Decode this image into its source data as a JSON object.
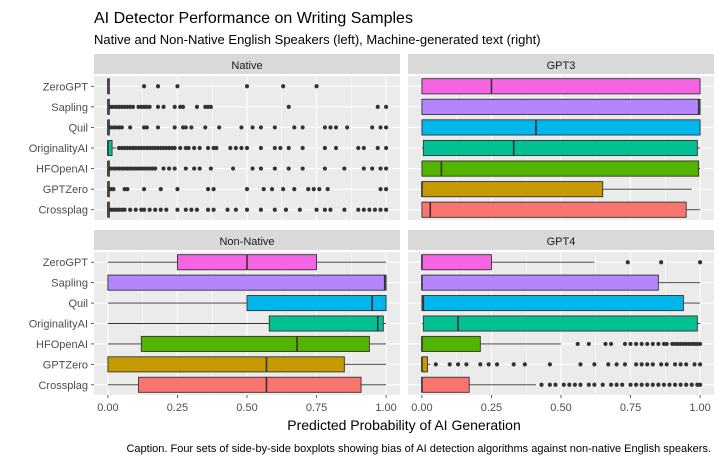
{
  "title": "AI Detector Performance on Writing Samples",
  "subtitle": "Native and Non-Native English Speakers (left), Machine-generated text (right)",
  "caption": "Caption. Four sets of side-by-side boxplots showing bias of AI detection algorithms against non-native English speakers.",
  "colors": {
    "panel_bg": "#ebebeb",
    "strip_bg": "#d9d9d9",
    "grid": "#ffffff",
    "ZeroGPT": "#f564e3",
    "Sapling": "#b385ff",
    "Quil": "#00b6eb",
    "OriginalityAI": "#00c094",
    "HFOpenAI": "#53b400",
    "GPTZero": "#c49a00",
    "Crossplag": "#f8766d"
  },
  "chart_data": {
    "type": "boxplot",
    "xlabel": "Predicted Probability of AI Generation",
    "xlim": [
      0,
      1
    ],
    "xticks": [
      "0.00",
      "0.25",
      "0.50",
      "0.75",
      "1.00"
    ],
    "xtick_values": [
      0,
      0.25,
      0.5,
      0.75,
      1
    ],
    "categories": [
      "ZeroGPT",
      "Sapling",
      "Quil",
      "OriginalityAI",
      "HFOpenAI",
      "GPTZero",
      "Crossplag"
    ],
    "grid": true,
    "panels": [
      {
        "name": "Native",
        "boxes": [
          {
            "category": "ZeroGPT",
            "q1": 0.0,
            "median": 0.0,
            "q3": 0.0,
            "whisker_low": 0.0,
            "whisker_high": 0.0,
            "outliers": [
              0.13,
              0.18,
              0.25,
              0.5,
              0.63,
              0.75
            ]
          },
          {
            "category": "Sapling",
            "q1": 0.0,
            "median": 0.0,
            "q3": 0.0,
            "whisker_low": 0.0,
            "whisker_high": 0.0,
            "outliers": [
              0.01,
              0.02,
              0.03,
              0.04,
              0.05,
              0.06,
              0.07,
              0.08,
              0.09,
              0.11,
              0.12,
              0.13,
              0.14,
              0.15,
              0.18,
              0.2,
              0.24,
              0.26,
              0.27,
              0.32,
              0.35,
              0.36,
              0.37,
              0.65,
              0.97,
              1.0
            ]
          },
          {
            "category": "Quil",
            "q1": 0.0,
            "median": 0.0,
            "q3": 0.0,
            "whisker_low": 0.0,
            "whisker_high": 0.0,
            "outliers": [
              0.01,
              0.02,
              0.03,
              0.04,
              0.05,
              0.08,
              0.13,
              0.14,
              0.18,
              0.24,
              0.27,
              0.28,
              0.3,
              0.35,
              0.4,
              0.48,
              0.52,
              0.55,
              0.6,
              0.67,
              0.7,
              0.78,
              0.8,
              0.82,
              0.86,
              0.95,
              0.98,
              1.0
            ]
          },
          {
            "category": "OriginalityAI",
            "q1": 0.0,
            "median": 0.0,
            "q3": 0.015,
            "whisker_low": 0.0,
            "whisker_high": 0.03,
            "outliers": [
              0.04,
              0.05,
              0.06,
              0.07,
              0.08,
              0.09,
              0.1,
              0.11,
              0.12,
              0.13,
              0.14,
              0.15,
              0.16,
              0.17,
              0.18,
              0.19,
              0.2,
              0.21,
              0.22,
              0.23,
              0.24,
              0.26,
              0.28,
              0.29,
              0.31,
              0.33,
              0.36,
              0.38,
              0.39,
              0.44,
              0.46,
              0.48,
              0.5,
              0.55,
              0.6,
              0.62,
              0.65,
              0.7,
              0.78,
              0.82,
              0.9,
              0.92,
              0.97,
              1.0
            ]
          },
          {
            "category": "HFOpenAI",
            "q1": 0.0,
            "median": 0.0,
            "q3": 0.0,
            "whisker_low": 0.0,
            "whisker_high": 0.0,
            "outliers": [
              0.01,
              0.02,
              0.03,
              0.04,
              0.05,
              0.06,
              0.07,
              0.08,
              0.09,
              0.1,
              0.11,
              0.12,
              0.13,
              0.14,
              0.15,
              0.16,
              0.17,
              0.2,
              0.22,
              0.24,
              0.28,
              0.31,
              0.33,
              0.37,
              0.45,
              0.52,
              0.55,
              0.6,
              0.65,
              0.7,
              0.78,
              0.85,
              0.92,
              0.95,
              0.98,
              1.0
            ]
          },
          {
            "category": "GPTZero",
            "q1": 0.0,
            "median": 0.0,
            "q3": 0.0,
            "whisker_low": 0.0,
            "whisker_high": 0.0,
            "outliers": [
              0.01,
              0.02,
              0.06,
              0.07,
              0.13,
              0.19,
              0.25,
              0.36,
              0.38,
              0.5,
              0.56,
              0.59,
              0.63,
              0.67,
              0.72,
              0.74,
              0.76,
              0.79,
              0.98,
              1.0
            ]
          },
          {
            "category": "Crossplag",
            "q1": 0.0,
            "median": 0.0,
            "q3": 0.0,
            "whisker_low": 0.0,
            "whisker_high": 0.0,
            "outliers": [
              0.01,
              0.02,
              0.03,
              0.04,
              0.05,
              0.06,
              0.08,
              0.1,
              0.12,
              0.13,
              0.15,
              0.17,
              0.19,
              0.21,
              0.25,
              0.28,
              0.3,
              0.32,
              0.36,
              0.38,
              0.43,
              0.46,
              0.5,
              0.55,
              0.6,
              0.64,
              0.69,
              0.75,
              0.78,
              0.8,
              0.85,
              0.9,
              0.92,
              0.94,
              0.96,
              0.98,
              1.0
            ]
          }
        ]
      },
      {
        "name": "GPT3",
        "boxes": [
          {
            "category": "ZeroGPT",
            "q1": 0.0,
            "median": 0.25,
            "q3": 1.0,
            "whisker_low": 0.0,
            "whisker_high": 1.0,
            "outliers": []
          },
          {
            "category": "Sapling",
            "q1": 0.0,
            "median": 0.995,
            "q3": 1.0,
            "whisker_low": 0.0,
            "whisker_high": 1.0,
            "outliers": []
          },
          {
            "category": "Quil",
            "q1": 0.0,
            "median": 0.41,
            "q3": 1.0,
            "whisker_low": 0.0,
            "whisker_high": 1.0,
            "outliers": []
          },
          {
            "category": "OriginalityAI",
            "q1": 0.005,
            "median": 0.33,
            "q3": 0.99,
            "whisker_low": 0.0,
            "whisker_high": 1.0,
            "outliers": []
          },
          {
            "category": "HFOpenAI",
            "q1": 0.0,
            "median": 0.07,
            "q3": 0.995,
            "whisker_low": 0.0,
            "whisker_high": 1.0,
            "outliers": []
          },
          {
            "category": "GPTZero",
            "q1": 0.0,
            "median": 0.0,
            "q3": 0.65,
            "whisker_low": 0.0,
            "whisker_high": 0.97,
            "outliers": []
          },
          {
            "category": "Crossplag",
            "q1": 0.0,
            "median": 0.03,
            "q3": 0.95,
            "whisker_low": 0.0,
            "whisker_high": 1.0,
            "outliers": []
          }
        ]
      },
      {
        "name": "Non-Native",
        "boxes": [
          {
            "category": "ZeroGPT",
            "q1": 0.25,
            "median": 0.5,
            "q3": 0.75,
            "whisker_low": 0.0,
            "whisker_high": 1.0,
            "outliers": []
          },
          {
            "category": "Sapling",
            "q1": 0.0,
            "median": 0.995,
            "q3": 1.0,
            "whisker_low": 0.0,
            "whisker_high": 1.0,
            "outliers": []
          },
          {
            "category": "Quil",
            "q1": 0.5,
            "median": 0.95,
            "q3": 1.0,
            "whisker_low": 0.0,
            "whisker_high": 1.0,
            "outliers": []
          },
          {
            "category": "OriginalityAI",
            "q1": 0.58,
            "median": 0.97,
            "q3": 0.99,
            "whisker_low": 0.0,
            "whisker_high": 1.0,
            "outliers": []
          },
          {
            "category": "HFOpenAI",
            "q1": 0.12,
            "median": 0.68,
            "q3": 0.94,
            "whisker_low": 0.0,
            "whisker_high": 1.0,
            "outliers": []
          },
          {
            "category": "GPTZero",
            "q1": 0.0,
            "median": 0.57,
            "q3": 0.85,
            "whisker_low": 0.0,
            "whisker_high": 1.0,
            "outliers": []
          },
          {
            "category": "Crossplag",
            "q1": 0.11,
            "median": 0.57,
            "q3": 0.91,
            "whisker_low": 0.0,
            "whisker_high": 1.0,
            "outliers": []
          }
        ]
      },
      {
        "name": "GPT4",
        "boxes": [
          {
            "category": "ZeroGPT",
            "q1": 0.0,
            "median": 0.0,
            "q3": 0.25,
            "whisker_low": 0.0,
            "whisker_high": 0.62,
            "outliers": [
              0.74,
              0.86,
              1.0
            ]
          },
          {
            "category": "Sapling",
            "q1": 0.0,
            "median": 0.0,
            "q3": 0.85,
            "whisker_low": 0.0,
            "whisker_high": 1.0,
            "outliers": []
          },
          {
            "category": "Quil",
            "q1": 0.0,
            "median": 0.005,
            "q3": 0.94,
            "whisker_low": 0.0,
            "whisker_high": 1.0,
            "outliers": []
          },
          {
            "category": "OriginalityAI",
            "q1": 0.005,
            "median": 0.13,
            "q3": 0.99,
            "whisker_low": 0.0,
            "whisker_high": 1.0,
            "outliers": []
          },
          {
            "category": "HFOpenAI",
            "q1": 0.0,
            "median": 0.0,
            "q3": 0.21,
            "whisker_low": 0.0,
            "whisker_high": 0.5,
            "outliers": [
              0.56,
              0.6,
              0.66,
              0.68,
              0.73,
              0.75,
              0.77,
              0.79,
              0.81,
              0.83,
              0.85,
              0.87,
              0.88,
              0.9,
              0.91,
              0.92,
              0.93,
              0.94,
              0.95,
              0.96,
              0.97,
              0.98,
              0.99,
              1.0
            ]
          },
          {
            "category": "GPTZero",
            "q1": 0.0,
            "median": 0.0,
            "q3": 0.02,
            "whisker_low": 0.0,
            "whisker_high": 0.03,
            "outliers": [
              0.05,
              0.1,
              0.13,
              0.16,
              0.21,
              0.24,
              0.27,
              0.33,
              0.37,
              0.46,
              0.57,
              0.62,
              0.67,
              0.7,
              0.73,
              0.77,
              0.79,
              0.81,
              0.83,
              0.86,
              0.88,
              0.91,
              0.93,
              0.95,
              0.98,
              1.0
            ]
          },
          {
            "category": "Crossplag",
            "q1": 0.0,
            "median": 0.0,
            "q3": 0.17,
            "whisker_low": 0.0,
            "whisker_high": 0.41,
            "outliers": [
              0.43,
              0.46,
              0.48,
              0.51,
              0.53,
              0.55,
              0.57,
              0.6,
              0.62,
              0.65,
              0.68,
              0.7,
              0.72,
              0.75,
              0.77,
              0.79,
              0.81,
              0.83,
              0.85,
              0.87,
              0.89,
              0.91,
              0.93,
              0.95,
              0.97,
              0.99,
              1.0
            ]
          }
        ]
      }
    ]
  }
}
